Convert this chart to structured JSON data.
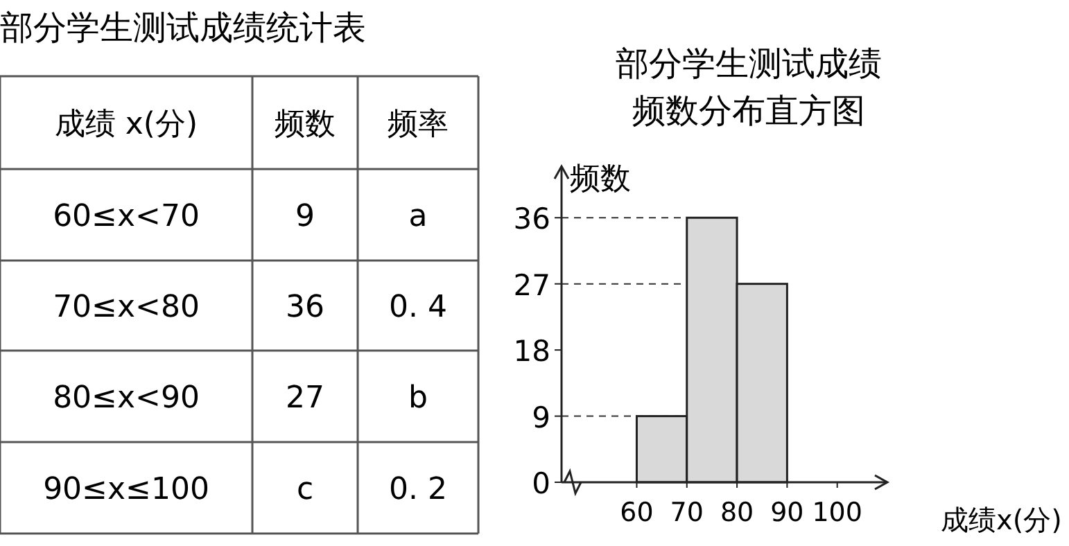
{
  "chart_data": [
    {
      "type": "other",
      "title": "部分学生测试成绩统计表",
      "annotations": [
        "成绩 x(分)",
        "频数",
        "频率",
        "60≤x<70",
        "9",
        "a",
        "70≤x<80",
        "36",
        "0. 4",
        "80≤x<90",
        "27",
        "b",
        "90≤x≤100",
        "c",
        "0. 2"
      ]
    },
    {
      "type": "histogram",
      "title": "部分学生测试成绩",
      "subtitle": "频数分布直方图",
      "xlabel": "成绩x(分)",
      "ylabel": "频数",
      "bins": [
        60,
        70,
        80,
        90,
        100
      ],
      "values": [
        9,
        36,
        27,
        null
      ],
      "color": "#d9d9d9",
      "xlim": [
        45,
        110
      ],
      "xticks": [
        60,
        70,
        80,
        90,
        100
      ],
      "ylim": [
        0,
        43
      ],
      "yticks": [
        0,
        9,
        18,
        27,
        36
      ],
      "grid": false,
      "ref_lines": [
        {
          "axis": "y",
          "value": 9,
          "line_style": "dashed"
        },
        {
          "axis": "y",
          "value": 27,
          "line_style": "dashed"
        },
        {
          "axis": "y",
          "value": 36,
          "line_style": "dashed"
        }
      ]
    }
  ]
}
